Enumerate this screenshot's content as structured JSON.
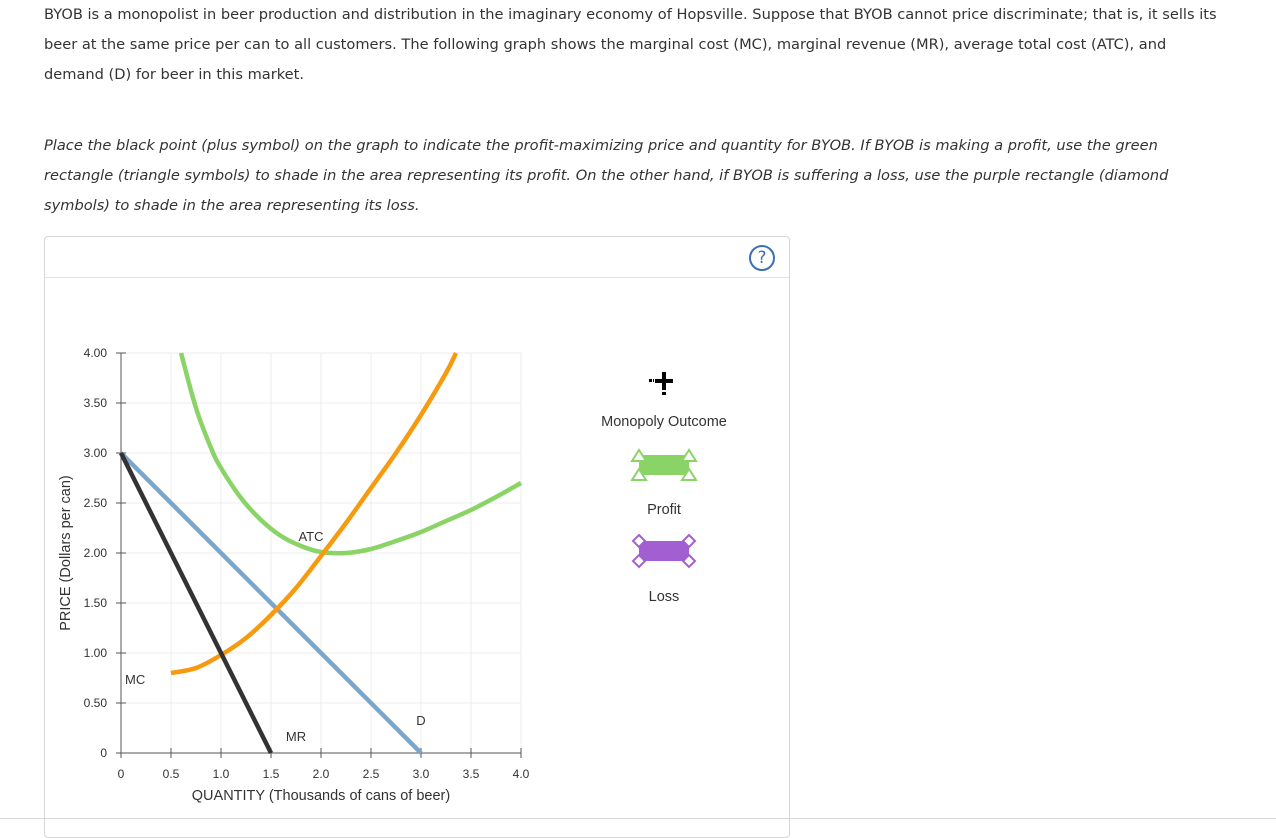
{
  "text": {
    "intro": "BYOB is a monopolist in beer production and distribution in the imaginary economy of Hopsville. Suppose that BYOB cannot price discriminate; that is, it sells its beer at the same price per can to all customers. The following graph shows the marginal cost (MC), marginal revenue (MR), average total cost (ATC), and demand (D) for beer in this market.",
    "instructions": "Place the black point (plus symbol) on the graph to indicate the profit-maximizing price and quantity for BYOB. If BYOB is making a profit, use the green rectangle (triangle symbols) to shade in the area representing its profit. On the other hand, if BYOB is suffering a loss, use the purple rectangle (diamond symbols) to shade in the area representing its loss."
  },
  "help": {
    "symbol": "?"
  },
  "legend": {
    "monopoly_outcome": "Monopoly Outcome",
    "profit": "Profit",
    "loss": "Loss"
  },
  "icons": {
    "help": "question-circle-icon",
    "monopoly_tool": "plus-point-icon",
    "profit_tool": "green-rectangle-triangle-icon",
    "loss_tool": "purple-rectangle-diamond-icon"
  },
  "colors": {
    "mc": "#f79a0e",
    "atc": "#8ad467",
    "demand": "#7aa6cc",
    "mr": "#333333",
    "profit": "#8ad467",
    "loss": "#a25fd1",
    "help": "#3c6fb6"
  },
  "chart_data": {
    "type": "line",
    "xlabel": "QUANTITY (Thousands of cans of beer)",
    "ylabel": "PRICE (Dollars per can)",
    "xlim": [
      0,
      4
    ],
    "ylim": [
      0,
      4
    ],
    "x_ticks": [
      0,
      0.5,
      1.0,
      1.5,
      2.0,
      2.5,
      3.0,
      3.5,
      4.0
    ],
    "x_tick_labels": [
      "0",
      "0.5",
      "1.0",
      "1.5",
      "2.0",
      "2.5",
      "3.0",
      "3.5",
      "4.0"
    ],
    "y_ticks": [
      0,
      0.5,
      1.0,
      1.5,
      2.0,
      2.5,
      3.0,
      3.5,
      4.0
    ],
    "y_tick_labels": [
      "0",
      "0.50",
      "1.00",
      "1.50",
      "2.00",
      "2.50",
      "3.00",
      "3.50",
      "4.00"
    ],
    "grid": true,
    "series": [
      {
        "name": "MC",
        "color": "#f79a0e",
        "x": [
          0.5,
          0.75,
          1.0,
          1.25,
          1.5,
          1.75,
          2.0,
          2.25,
          2.5,
          2.75,
          3.0,
          3.25,
          3.35
        ],
        "y": [
          0.8,
          0.85,
          0.98,
          1.15,
          1.38,
          1.65,
          1.97,
          2.3,
          2.65,
          3.0,
          3.38,
          3.8,
          4.0
        ]
      },
      {
        "name": "ATC",
        "color": "#8ad467",
        "x": [
          0.6,
          0.75,
          0.9,
          1.0,
          1.2,
          1.4,
          1.6,
          1.8,
          2.0,
          2.25,
          2.5,
          2.75,
          3.0,
          3.25,
          3.5,
          3.75,
          4.0
        ],
        "y": [
          4.0,
          3.45,
          3.05,
          2.85,
          2.55,
          2.33,
          2.17,
          2.07,
          2.01,
          2.0,
          2.04,
          2.12,
          2.21,
          2.32,
          2.43,
          2.56,
          2.7
        ]
      },
      {
        "name": "D",
        "color": "#7aa6cc",
        "x": [
          0,
          3.0
        ],
        "y": [
          3.0,
          0.0
        ]
      },
      {
        "name": "MR",
        "color": "#333333",
        "x": [
          0,
          1.5
        ],
        "y": [
          3.0,
          0.0
        ]
      }
    ],
    "annotations": [
      {
        "text": "MC",
        "x": 0.0,
        "y": 0.8
      },
      {
        "text": "ATC",
        "x": 1.9,
        "y": 2.12
      },
      {
        "text": "D",
        "x": 3.0,
        "y": 0.2
      },
      {
        "text": "MR",
        "x": 1.75,
        "y": 0.12
      }
    ]
  }
}
